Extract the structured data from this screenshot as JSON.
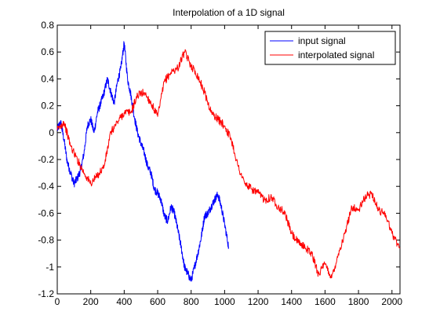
{
  "chart_data": {
    "type": "line",
    "title": "Interpolation of a 1D signal",
    "xlabel": "",
    "ylabel": "",
    "xlim": [
      0,
      2048
    ],
    "ylim": [
      -1.2,
      0.8
    ],
    "x_ticks": [
      0,
      200,
      400,
      600,
      800,
      1000,
      1200,
      1400,
      1600,
      1800,
      2000
    ],
    "y_ticks": [
      -1.2,
      -1,
      -0.8,
      -0.6,
      -0.4,
      -0.2,
      0,
      0.2,
      0.4,
      0.6,
      0.8
    ],
    "y_tick_labels": [
      "-1.2",
      "-1",
      "-0.8",
      "-0.6",
      "-0.4",
      "-0.2",
      "0",
      "0.2",
      "0.4",
      "0.6",
      "0.8"
    ],
    "grid": false,
    "legend_position": "top-right",
    "series": [
      {
        "name": "input signal",
        "color": "#0000ff",
        "x": [
          0,
          20,
          40,
          60,
          80,
          100,
          120,
          140,
          160,
          180,
          200,
          220,
          240,
          260,
          280,
          300,
          320,
          340,
          360,
          380,
          400,
          420,
          440,
          460,
          480,
          500,
          520,
          540,
          560,
          580,
          600,
          620,
          640,
          660,
          680,
          700,
          720,
          740,
          760,
          780,
          800,
          820,
          840,
          860,
          880,
          900,
          920,
          940,
          960,
          980,
          1000,
          1024
        ],
        "y": [
          0.02,
          0.08,
          -0.05,
          -0.22,
          -0.3,
          -0.38,
          -0.34,
          -0.28,
          -0.15,
          0.05,
          0.1,
          0.0,
          0.15,
          0.22,
          0.3,
          0.4,
          0.3,
          0.22,
          0.38,
          0.48,
          0.67,
          0.4,
          0.28,
          0.12,
          0.0,
          -0.08,
          -0.15,
          -0.25,
          -0.3,
          -0.42,
          -0.45,
          -0.5,
          -0.62,
          -0.66,
          -0.55,
          -0.6,
          -0.72,
          -0.85,
          -1.0,
          -1.05,
          -1.1,
          -1.0,
          -0.9,
          -0.78,
          -0.62,
          -0.6,
          -0.55,
          -0.5,
          -0.46,
          -0.55,
          -0.68,
          -0.85
        ]
      },
      {
        "name": "interpolated signal",
        "color": "#ff0000",
        "x": [
          0,
          40,
          80,
          120,
          160,
          200,
          240,
          280,
          320,
          360,
          400,
          440,
          480,
          520,
          560,
          600,
          640,
          680,
          720,
          760,
          800,
          840,
          880,
          920,
          960,
          1000,
          1040,
          1080,
          1120,
          1160,
          1200,
          1240,
          1280,
          1320,
          1360,
          1400,
          1440,
          1480,
          1520,
          1560,
          1600,
          1640,
          1680,
          1720,
          1760,
          1800,
          1840,
          1880,
          1920,
          1960,
          2000,
          2048
        ],
        "y": [
          0.02,
          0.08,
          -0.1,
          -0.2,
          -0.3,
          -0.38,
          -0.32,
          -0.25,
          0.0,
          0.08,
          0.15,
          0.15,
          0.28,
          0.3,
          0.22,
          0.12,
          0.38,
          0.45,
          0.48,
          0.6,
          0.5,
          0.42,
          0.3,
          0.15,
          0.1,
          0.05,
          -0.05,
          -0.25,
          -0.38,
          -0.42,
          -0.45,
          -0.5,
          -0.48,
          -0.55,
          -0.6,
          -0.75,
          -0.82,
          -0.85,
          -0.9,
          -1.05,
          -0.98,
          -1.08,
          -0.9,
          -0.75,
          -0.55,
          -0.58,
          -0.48,
          -0.45,
          -0.58,
          -0.6,
          -0.75,
          -0.86
        ]
      }
    ]
  }
}
